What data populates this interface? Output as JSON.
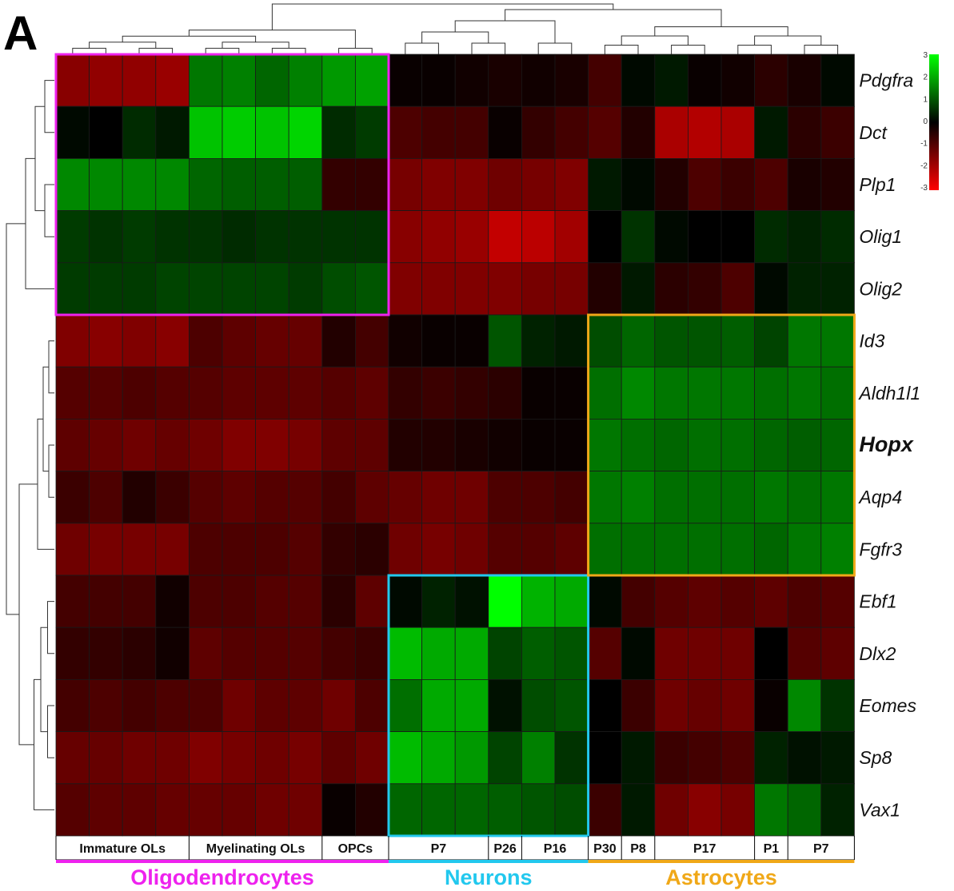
{
  "panel_label": "A",
  "chart_data": {
    "type": "heatmap",
    "colorscale": {
      "min": -3,
      "max": 3,
      "ticks": [
        "3",
        "2",
        "1",
        "0",
        "-1",
        "-2",
        "-3"
      ],
      "low_color": "#ff0000",
      "mid_color": "#000000",
      "high_color": "#00ff00"
    },
    "rows": [
      "Pdgfra",
      "Dct",
      "Plp1",
      "Olig1",
      "Olig2",
      "Id3",
      "Aldh1l1",
      "Hopx",
      "Aqp4",
      "Fgfr3",
      "Ebf1",
      "Dlx2",
      "Eomes",
      "Sp8",
      "Vax1"
    ],
    "highlight_row": "Hopx",
    "columns": 24,
    "values": [
      [
        -1.6,
        -1.7,
        -1.7,
        -1.8,
        1.4,
        1.5,
        1.2,
        1.5,
        1.8,
        1.9,
        -0.1,
        -0.1,
        -0.2,
        -0.3,
        -0.2,
        -0.3,
        -0.8,
        0.1,
        0.3,
        -0.1,
        -0.2,
        -0.5,
        -0.3,
        0.1
      ],
      [
        0.1,
        0.0,
        0.5,
        0.3,
        2.3,
        2.4,
        2.3,
        2.5,
        0.5,
        0.7,
        -0.9,
        -0.8,
        -0.8,
        -0.1,
        -0.6,
        -0.8,
        -1.0,
        -0.4,
        -2.0,
        -2.1,
        -2.0,
        0.3,
        -0.5,
        -0.7
      ],
      [
        1.6,
        1.6,
        1.6,
        1.6,
        1.2,
        1.1,
        1.1,
        1.1,
        -0.6,
        -0.6,
        -1.4,
        -1.5,
        -1.5,
        -1.3,
        -1.4,
        -1.5,
        0.3,
        0.1,
        -0.4,
        -0.9,
        -0.7,
        -0.9,
        -0.3,
        -0.4
      ],
      [
        0.7,
        0.6,
        0.7,
        0.6,
        0.6,
        0.5,
        0.6,
        0.6,
        0.6,
        0.6,
        -1.6,
        -1.7,
        -1.8,
        -2.3,
        -2.2,
        -1.9,
        0.0,
        0.6,
        0.1,
        0.0,
        0.0,
        0.5,
        0.4,
        0.5
      ],
      [
        0.7,
        0.7,
        0.7,
        0.8,
        0.8,
        0.8,
        0.8,
        0.7,
        0.9,
        1.0,
        -1.5,
        -1.5,
        -1.5,
        -1.5,
        -1.4,
        -1.4,
        -0.4,
        0.3,
        -0.5,
        -0.6,
        -0.9,
        0.1,
        0.4,
        0.4
      ],
      [
        -1.5,
        -1.6,
        -1.5,
        -1.6,
        -0.9,
        -1.1,
        -1.2,
        -1.2,
        -0.4,
        -0.8,
        -0.2,
        -0.1,
        -0.1,
        1.0,
        0.4,
        0.3,
        0.9,
        1.2,
        1.0,
        1.0,
        1.1,
        0.8,
        1.4,
        1.4
      ],
      [
        -1.0,
        -1.0,
        -0.9,
        -1.0,
        -1.0,
        -1.1,
        -1.1,
        -1.1,
        -1.0,
        -1.1,
        -0.6,
        -0.7,
        -0.6,
        -0.5,
        -0.1,
        -0.1,
        1.3,
        1.6,
        1.4,
        1.4,
        1.4,
        1.3,
        1.4,
        1.3
      ],
      [
        -1.1,
        -1.2,
        -1.3,
        -1.2,
        -1.3,
        -1.5,
        -1.5,
        -1.4,
        -1.1,
        -1.1,
        -0.4,
        -0.4,
        -0.3,
        -0.2,
        -0.1,
        -0.1,
        1.4,
        1.3,
        1.2,
        1.3,
        1.3,
        1.2,
        1.1,
        1.2
      ],
      [
        -0.7,
        -0.9,
        -0.4,
        -0.7,
        -1.0,
        -1.1,
        -1.0,
        -1.0,
        -0.8,
        -1.1,
        -1.2,
        -1.3,
        -1.3,
        -0.9,
        -0.9,
        -0.8,
        1.4,
        1.5,
        1.3,
        1.3,
        1.3,
        1.4,
        1.3,
        1.4
      ],
      [
        -1.3,
        -1.4,
        -1.4,
        -1.4,
        -0.9,
        -0.9,
        -0.9,
        -1.0,
        -0.6,
        -0.5,
        -1.3,
        -1.4,
        -1.3,
        -1.0,
        -1.0,
        -1.1,
        1.3,
        1.3,
        1.3,
        1.3,
        1.3,
        1.2,
        1.4,
        1.5
      ],
      [
        -0.8,
        -0.8,
        -0.8,
        -0.2,
        -0.9,
        -0.9,
        -1.0,
        -1.0,
        -0.5,
        -1.1,
        0.1,
        0.4,
        0.2,
        3.0,
        2.1,
        2.0,
        0.1,
        -0.8,
        -1.0,
        -1.1,
        -1.0,
        -1.1,
        -0.9,
        -1.0
      ],
      [
        -0.6,
        -0.6,
        -0.5,
        -0.2,
        -1.1,
        -1.0,
        -1.0,
        -1.0,
        -0.8,
        -0.7,
        2.2,
        2.0,
        2.0,
        0.8,
        1.1,
        1.0,
        -1.0,
        0.1,
        -1.3,
        -1.3,
        -1.3,
        0.0,
        -1.0,
        -1.1
      ],
      [
        -0.8,
        -0.9,
        -0.8,
        -0.9,
        -0.9,
        -1.3,
        -1.1,
        -1.1,
        -1.3,
        -0.9,
        1.3,
        2.0,
        2.0,
        0.2,
        0.9,
        1.0,
        0.0,
        -0.7,
        -1.3,
        -1.2,
        -1.3,
        -0.1,
        1.6,
        0.6
      ],
      [
        -1.2,
        -1.2,
        -1.3,
        -1.3,
        -1.5,
        -1.4,
        -1.3,
        -1.4,
        -1.1,
        -1.3,
        2.2,
        2.0,
        1.8,
        0.8,
        1.5,
        0.6,
        0.0,
        0.3,
        -0.7,
        -0.8,
        -0.9,
        0.4,
        0.2,
        0.3
      ],
      [
        -1.0,
        -1.1,
        -1.1,
        -1.2,
        -1.2,
        -1.2,
        -1.3,
        -1.3,
        -0.1,
        -0.4,
        1.2,
        1.2,
        1.2,
        1.1,
        1.0,
        0.9,
        -0.7,
        0.3,
        -1.3,
        -1.6,
        -1.4,
        1.4,
        1.2,
        0.4
      ]
    ],
    "sample_labels": [
      {
        "label": "Immature OLs",
        "start": 0,
        "count": 4
      },
      {
        "label": "Myelinating OLs",
        "start": 4,
        "count": 4
      },
      {
        "label": "OPCs",
        "start": 8,
        "count": 2
      },
      {
        "label": "P7",
        "start": 10,
        "count": 3
      },
      {
        "label": "P26",
        "start": 13,
        "count": 1
      },
      {
        "label": "P16",
        "start": 14,
        "count": 2
      },
      {
        "label": "P30",
        "start": 16,
        "count": 1
      },
      {
        "label": "P8",
        "start": 17,
        "count": 1
      },
      {
        "label": "P17",
        "start": 18,
        "count": 3
      },
      {
        "label": "P1",
        "start": 21,
        "count": 1
      },
      {
        "label": "P7",
        "start": 22,
        "count": 2
      }
    ],
    "groups": [
      {
        "label": "Oligodendrocytes",
        "color": "#ee22ee",
        "col_start": 0,
        "col_end": 9,
        "row_start": 0,
        "row_end": 4
      },
      {
        "label": "Neurons",
        "color": "#22c8ee",
        "col_start": 10,
        "col_end": 15,
        "row_start": 10,
        "row_end": 14
      },
      {
        "label": "Astrocytes",
        "color": "#f0a818",
        "col_start": 16,
        "col_end": 23,
        "row_start": 5,
        "row_end": 9
      }
    ]
  }
}
